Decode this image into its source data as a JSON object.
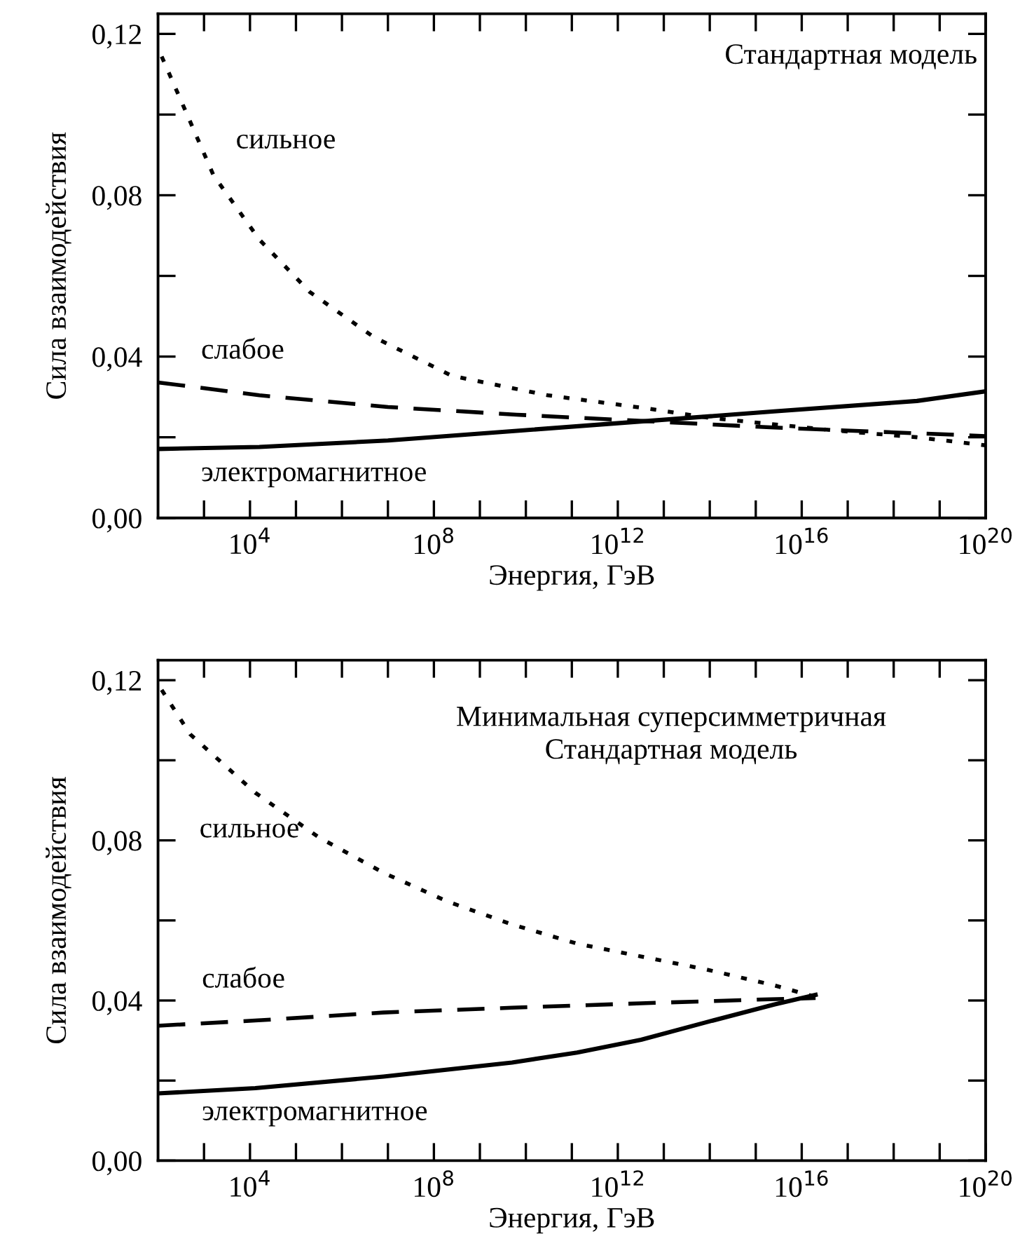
{
  "chart_data": [
    {
      "type": "line",
      "title": "Стандартная модель",
      "xlabel": "Энергия, ГэВ",
      "ylabel": "Сила взаимодействия",
      "log": "x",
      "grid": false,
      "legend": false,
      "xlim": [
        100.0,
        1e+20
      ],
      "ylim": [
        0,
        0.125
      ],
      "xticks": [
        {
          "value": 1000.0,
          "label": null
        },
        {
          "value": 10000.0,
          "label": "10$^{4}$"
        },
        {
          "value": 100000.0,
          "label": null
        },
        {
          "value": 1000000.0,
          "label": null
        },
        {
          "value": 10000000.0,
          "label": null
        },
        {
          "value": 100000000.0,
          "label": "10$^{8}$"
        },
        {
          "value": 1000000000.0,
          "label": null
        },
        {
          "value": 10000000000.0,
          "label": null
        },
        {
          "value": 100000000000.0,
          "label": null
        },
        {
          "value": 1000000000000.0,
          "label": "10$^{12}$"
        },
        {
          "value": 10000000000000.0,
          "label": null
        },
        {
          "value": 100000000000000.0,
          "label": null
        },
        {
          "value": 1000000000000000.0,
          "label": null
        },
        {
          "value": 1e+16,
          "label": "10$^{16}$"
        },
        {
          "value": 1e+17,
          "label": null
        },
        {
          "value": 1e+18,
          "label": null
        },
        {
          "value": 1e+19,
          "label": null
        },
        {
          "value": 1e+20,
          "label": "10$^{20}$"
        }
      ],
      "yticks": [
        {
          "value": 0,
          "label": "0,00"
        },
        {
          "value": 0.02,
          "label": null
        },
        {
          "value": 0.04,
          "label": "0,04"
        },
        {
          "value": 0.06,
          "label": null
        },
        {
          "value": 0.08,
          "label": "0,08"
        },
        {
          "value": 0.1,
          "label": null
        },
        {
          "value": 0.12,
          "label": "0,12"
        }
      ],
      "series": [
        {
          "name": "сильное",
          "color": "#000000",
          "line_style": "dotted",
          "x": [
            120.0,
            400.0,
            1600.0,
            16000.0,
            200000.0,
            5000000.0,
            250000000.0,
            30000000000.0,
            4000000000000.0,
            100000000000000.0,
            6.3e+16,
            3.2e+18,
            1e+20
          ],
          "values": [
            0.1144,
            0.1008,
            0.085,
            0.069,
            0.056,
            0.0448,
            0.0352,
            0.0304,
            0.0272,
            0.0248,
            0.0216,
            0.02,
            0.018
          ]
        },
        {
          "name": "слабое",
          "color": "#000000",
          "line_style": "dashed",
          "x": [
            100.0,
            16000.0,
            10000000.0,
            6300000000.0,
            4000000000000.0,
            2500000000000000.0,
            1e+20
          ],
          "values": [
            0.0336,
            0.0304,
            0.0275,
            0.0256,
            0.024,
            0.0224,
            0.0203
          ]
        },
        {
          "name": "электромагнитное",
          "color": "#000000",
          "line_style": "solid",
          "x": [
            100.0,
            16000.0,
            10000000.0,
            6300000000.0,
            4000000000000.0,
            2500000000000000.0,
            3.2e+18,
            1e+20
          ],
          "values": [
            0.0171,
            0.0176,
            0.0192,
            0.0216,
            0.024,
            0.0264,
            0.029,
            0.0314
          ]
        }
      ]
    },
    {
      "type": "line",
      "title": "Минимальная суперсимметричная\nСтандартная модель",
      "xlabel": "Энергия, ГэВ",
      "ylabel": "Сила взаимодействия",
      "log": "x",
      "grid": false,
      "legend": false,
      "xlim": [
        100.0,
        1e+20
      ],
      "ylim": [
        0,
        0.125
      ],
      "xticks": [
        {
          "value": 1000.0,
          "label": null
        },
        {
          "value": 10000.0,
          "label": "10$^{4}$"
        },
        {
          "value": 100000.0,
          "label": null
        },
        {
          "value": 1000000.0,
          "label": null
        },
        {
          "value": 10000000.0,
          "label": null
        },
        {
          "value": 100000000.0,
          "label": "10$^{8}$"
        },
        {
          "value": 1000000000.0,
          "label": null
        },
        {
          "value": 10000000000.0,
          "label": null
        },
        {
          "value": 100000000000.0,
          "label": null
        },
        {
          "value": 1000000000000.0,
          "label": "10$^{12}$"
        },
        {
          "value": 10000000000000.0,
          "label": null
        },
        {
          "value": 100000000000000.0,
          "label": null
        },
        {
          "value": 1000000000000000.0,
          "label": null
        },
        {
          "value": 1e+16,
          "label": "10$^{16}$"
        },
        {
          "value": 1e+17,
          "label": null
        },
        {
          "value": 1e+18,
          "label": null
        },
        {
          "value": 1e+19,
          "label": null
        },
        {
          "value": 1e+20,
          "label": "10$^{20}$"
        }
      ],
      "yticks": [
        {
          "value": 0,
          "label": "0,00"
        },
        {
          "value": 0.02,
          "label": null
        },
        {
          "value": 0.04,
          "label": "0,04"
        },
        {
          "value": 0.06,
          "label": null
        },
        {
          "value": 0.08,
          "label": "0,08"
        },
        {
          "value": 0.1,
          "label": null
        },
        {
          "value": 0.12,
          "label": "0,12"
        }
      ],
      "series": [
        {
          "name": "сильное",
          "color": "#000000",
          "line_style": "dotted",
          "x": [
            120.0,
            500.0,
            13000.0,
            320000.0,
            8000000.0,
            200000000.0,
            5000000000.0,
            130000000000.0,
            3200000000000.0,
            80000000000000.0,
            2500000000000000.0,
            2e+16
          ],
          "values": [
            0.1176,
            0.1065,
            0.0919,
            0.0807,
            0.0719,
            0.0647,
            0.059,
            0.0542,
            0.051,
            0.0478,
            0.0438,
            0.0409
          ]
        },
        {
          "name": "слабое",
          "color": "#000000",
          "line_style": "dashed",
          "x": [
            100.0,
            13000.0,
            8000000.0,
            5000000000.0,
            3200000000000.0,
            2000000000000000.0,
            2e+16
          ],
          "values": [
            0.0337,
            0.035,
            0.037,
            0.0382,
            0.0393,
            0.0403,
            0.0406
          ]
        },
        {
          "name": "электромагнитное",
          "color": "#000000",
          "line_style": "solid",
          "x": [
            100.0,
            13000.0,
            8000000.0,
            5000000000.0,
            130000000000.0,
            3200000000000.0,
            80000000000000.0,
            2500000000000000.0,
            2e+16
          ],
          "values": [
            0.0168,
            0.0181,
            0.021,
            0.0245,
            0.027,
            0.0302,
            0.0345,
            0.039,
            0.0414
          ]
        }
      ]
    }
  ]
}
